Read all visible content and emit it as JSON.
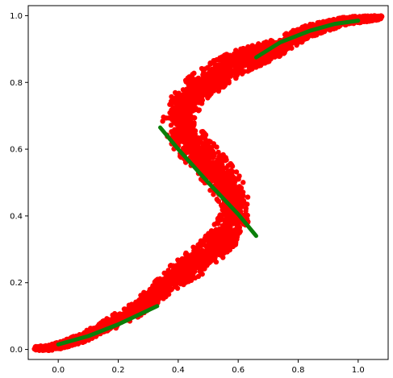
{
  "chart_data": {
    "type": "scatter",
    "title": "",
    "xlabel": "",
    "ylabel": "",
    "xlim": [
      -0.1,
      1.1
    ],
    "ylim": [
      -0.03,
      1.03
    ],
    "x_ticks": [
      0.0,
      0.2,
      0.4,
      0.6,
      0.8,
      1.0
    ],
    "y_ticks": [
      0.0,
      0.2,
      0.4,
      0.6,
      0.8,
      1.0
    ],
    "x_tick_labels": [
      "0.0",
      "0.2",
      "0.4",
      "0.6",
      "0.8",
      "1.0"
    ],
    "y_tick_labels": [
      "0.0",
      "0.2",
      "0.4",
      "0.6",
      "0.8",
      "1.0"
    ],
    "grid": false,
    "legend": "none",
    "scatter_color": "#ff0000",
    "line_color": "#0a7f0a",
    "scatter_curve_centerline": [
      [
        -0.08,
        0.003
      ],
      [
        -0.03,
        0.005
      ],
      [
        0.02,
        0.015
      ],
      [
        0.08,
        0.035
      ],
      [
        0.14,
        0.06
      ],
      [
        0.2,
        0.09
      ],
      [
        0.26,
        0.12
      ],
      [
        0.3,
        0.15
      ],
      [
        0.34,
        0.18
      ],
      [
        0.39,
        0.22
      ],
      [
        0.44,
        0.25
      ],
      [
        0.49,
        0.28
      ],
      [
        0.54,
        0.32
      ],
      [
        0.58,
        0.38
      ],
      [
        0.6,
        0.42
      ],
      [
        0.59,
        0.45
      ],
      [
        0.57,
        0.48
      ],
      [
        0.53,
        0.53
      ],
      [
        0.48,
        0.58
      ],
      [
        0.43,
        0.63
      ],
      [
        0.4,
        0.68
      ],
      [
        0.41,
        0.72
      ],
      [
        0.44,
        0.76
      ],
      [
        0.48,
        0.79
      ],
      [
        0.54,
        0.83
      ],
      [
        0.6,
        0.86
      ],
      [
        0.66,
        0.88
      ],
      [
        0.72,
        0.9
      ],
      [
        0.78,
        0.93
      ],
      [
        0.84,
        0.955
      ],
      [
        0.9,
        0.97
      ],
      [
        0.96,
        0.985
      ],
      [
        1.02,
        0.99
      ],
      [
        1.08,
        0.995
      ]
    ],
    "scatter_curve_halfwidth": [
      0.005,
      0.007,
      0.01,
      0.012,
      0.015,
      0.018,
      0.02,
      0.022,
      0.025,
      0.03,
      0.035,
      0.038,
      0.04,
      0.04,
      0.04,
      0.042,
      0.044,
      0.045,
      0.046,
      0.046,
      0.045,
      0.044,
      0.042,
      0.04,
      0.036,
      0.032,
      0.028,
      0.024,
      0.02,
      0.016,
      0.013,
      0.01,
      0.008,
      0.005
    ],
    "series": [
      {
        "points": [
          [
            0.0,
            0.015
          ],
          [
            0.1,
            0.04
          ],
          [
            0.2,
            0.075
          ],
          [
            0.33,
            0.13
          ]
        ]
      },
      {
        "points": [
          [
            0.34,
            0.665
          ],
          [
            0.4,
            0.6
          ],
          [
            0.5,
            0.5
          ],
          [
            0.6,
            0.405
          ],
          [
            0.66,
            0.34
          ]
        ]
      },
      {
        "points": [
          [
            0.66,
            0.875
          ],
          [
            0.74,
            0.92
          ],
          [
            0.84,
            0.955
          ],
          [
            0.92,
            0.975
          ],
          [
            1.0,
            0.985
          ]
        ]
      }
    ]
  }
}
